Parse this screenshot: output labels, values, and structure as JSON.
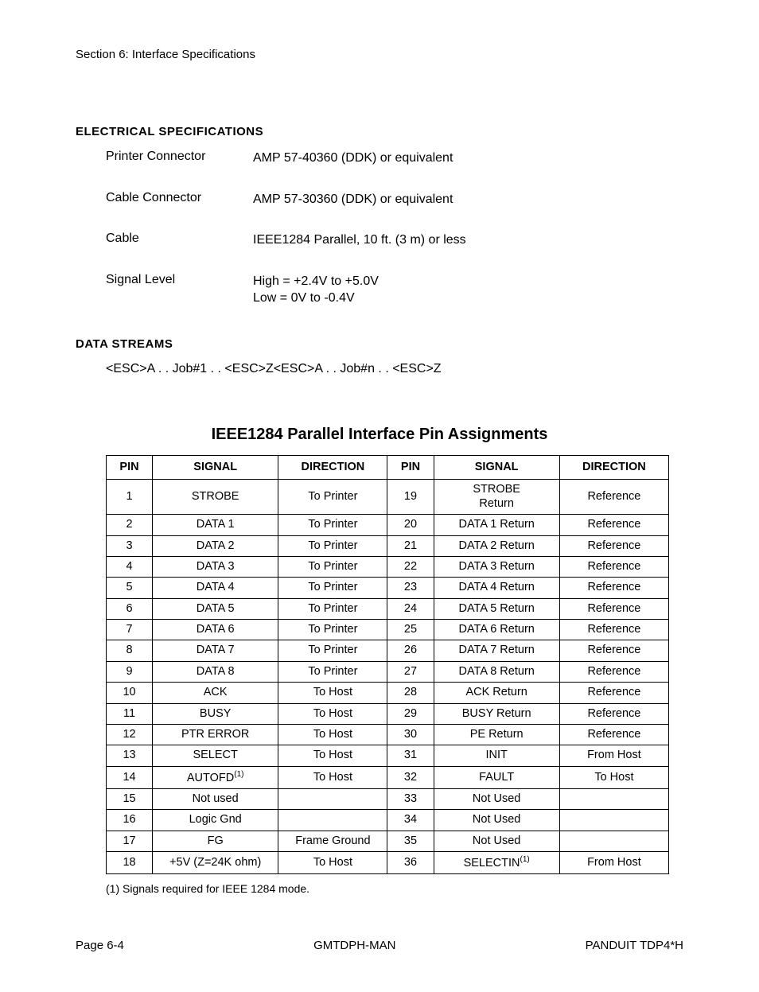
{
  "header": {
    "section": "Section 6: Interface Specifications"
  },
  "electrical": {
    "heading": "ELECTRICAL SPECIFICATIONS",
    "rows": [
      {
        "label": "Printer Connector",
        "value": "AMP 57-40360 (DDK) or equivalent"
      },
      {
        "label": "Cable Connector",
        "value": "AMP 57-30360 (DDK) or equivalent"
      },
      {
        "label": "Cable",
        "value": "IEEE1284 Parallel, 10 ft. (3 m) or less"
      },
      {
        "label": "Signal Level",
        "value": "High = +2.4V to +5.0V\nLow = 0V to -0.4V"
      }
    ]
  },
  "streams": {
    "heading": "DATA STREAMS",
    "line": "<ESC>A . . Job#1 . . <ESC>Z<ESC>A . . Job#n . . <ESC>Z"
  },
  "pin_table": {
    "title": "IEEE1284 Parallel Interface Pin Assignments",
    "columns": [
      "PIN",
      "SIGNAL",
      "DIRECTION",
      "PIN",
      "SIGNAL",
      "DIRECTION"
    ],
    "rows": [
      [
        "1",
        "STROBE",
        "To Printer",
        "19",
        "STROBE\nReturn",
        "Reference"
      ],
      [
        "2",
        "DATA 1",
        "To Printer",
        "20",
        "DATA 1 Return",
        "Reference"
      ],
      [
        "3",
        "DATA 2",
        "To Printer",
        "21",
        "DATA 2 Return",
        "Reference"
      ],
      [
        "4",
        "DATA 3",
        "To Printer",
        "22",
        "DATA 3 Return",
        "Reference"
      ],
      [
        "5",
        "DATA 4",
        "To Printer",
        "23",
        "DATA 4 Return",
        "Reference"
      ],
      [
        "6",
        "DATA 5",
        "To Printer",
        "24",
        "DATA 5 Return",
        "Reference"
      ],
      [
        "7",
        "DATA 6",
        "To Printer",
        "25",
        "DATA 6 Return",
        "Reference"
      ],
      [
        "8",
        "DATA 7",
        "To Printer",
        "26",
        "DATA 7 Return",
        "Reference"
      ],
      [
        "9",
        "DATA 8",
        "To Printer",
        "27",
        "DATA 8 Return",
        "Reference"
      ],
      [
        "10",
        "ACK",
        "To Host",
        "28",
        "ACK Return",
        "Reference"
      ],
      [
        "11",
        "BUSY",
        "To Host",
        "29",
        "BUSY Return",
        "Reference"
      ],
      [
        "12",
        "PTR ERROR",
        "To Host",
        "30",
        "PE Return",
        "Reference"
      ],
      [
        "13",
        "SELECT",
        "To Host",
        "31",
        "INIT",
        "From Host"
      ],
      [
        "14",
        "AUTOFD(1)",
        "To Host",
        "32",
        "FAULT",
        "To Host"
      ],
      [
        "15",
        "Not used",
        "",
        "33",
        "Not Used",
        ""
      ],
      [
        "16",
        "Logic Gnd",
        "",
        "34",
        "Not Used",
        ""
      ],
      [
        "17",
        "FG",
        "Frame Ground",
        "35",
        "Not Used",
        ""
      ],
      [
        "18",
        "+5V (Z=24K ohm)",
        "To Host",
        "36",
        "SELECTIN(1)",
        "From Host"
      ]
    ],
    "footnote": "(1) Signals required for IEEE 1284 mode."
  },
  "footer": {
    "left": "Page 6-4",
    "center": "GMTDPH-MAN",
    "right": "PANDUIT TDP4*H"
  }
}
